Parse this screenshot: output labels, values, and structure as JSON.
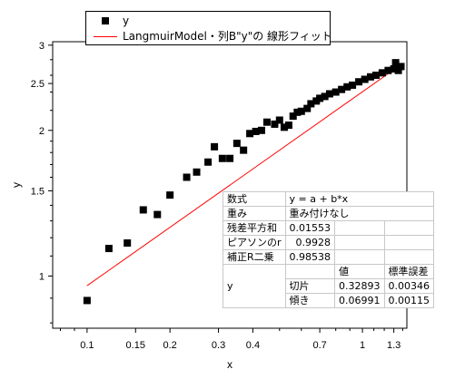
{
  "chart_data": {
    "type": "scatter",
    "xlabel": "x",
    "ylabel": "y",
    "x_scale": "log",
    "y_scale": "log",
    "xlim": [
      0.075,
      1.45
    ],
    "ylim": [
      0.78,
      3.05
    ],
    "xticks": [
      {
        "value": 0.1,
        "label": "0.1"
      },
      {
        "value": 0.15,
        "label": "0.15"
      },
      {
        "value": 0.2,
        "label": "0.2"
      },
      {
        "value": 0.3,
        "label": "0.3"
      },
      {
        "value": 0.4,
        "label": "0.4"
      },
      {
        "value": 0.7,
        "label": "0.7"
      },
      {
        "value": 1.0,
        "label": "1"
      },
      {
        "value": 1.3,
        "label": "1.3"
      }
    ],
    "yticks": [
      {
        "value": 1,
        "label": "1"
      },
      {
        "value": 1.5,
        "label": "1.5"
      },
      {
        "value": 2,
        "label": "2"
      },
      {
        "value": 2.5,
        "label": "2.5"
      },
      {
        "value": 3,
        "label": "3"
      }
    ],
    "series": [
      {
        "name": "y",
        "style": "scatter",
        "color": "#000000",
        "points": [
          [
            0.1,
            0.89
          ],
          [
            0.12,
            1.14
          ],
          [
            0.14,
            1.17
          ],
          [
            0.16,
            1.37
          ],
          [
            0.18,
            1.34
          ],
          [
            0.2,
            1.47
          ],
          [
            0.23,
            1.6
          ],
          [
            0.25,
            1.64
          ],
          [
            0.275,
            1.72
          ],
          [
            0.29,
            1.85
          ],
          [
            0.31,
            1.75
          ],
          [
            0.33,
            1.75
          ],
          [
            0.35,
            1.88
          ],
          [
            0.37,
            1.82
          ],
          [
            0.39,
            1.97
          ],
          [
            0.41,
            1.99
          ],
          [
            0.43,
            2.0
          ],
          [
            0.45,
            2.08
          ],
          [
            0.48,
            2.06
          ],
          [
            0.5,
            2.1
          ],
          [
            0.52,
            2.03
          ],
          [
            0.54,
            2.05
          ],
          [
            0.56,
            2.14
          ],
          [
            0.58,
            2.18
          ],
          [
            0.6,
            2.19
          ],
          [
            0.63,
            2.22
          ],
          [
            0.65,
            2.27
          ],
          [
            0.68,
            2.3
          ],
          [
            0.7,
            2.33
          ],
          [
            0.73,
            2.35
          ],
          [
            0.76,
            2.38
          ],
          [
            0.8,
            2.4
          ],
          [
            0.84,
            2.43
          ],
          [
            0.88,
            2.46
          ],
          [
            0.92,
            2.48
          ],
          [
            0.97,
            2.52
          ],
          [
            1.02,
            2.55
          ],
          [
            1.07,
            2.58
          ],
          [
            1.12,
            2.6
          ],
          [
            1.18,
            2.63
          ],
          [
            1.24,
            2.66
          ],
          [
            1.3,
            2.68
          ],
          [
            1.35,
            2.66
          ],
          [
            1.38,
            2.71
          ],
          [
            1.32,
            2.76
          ]
        ]
      },
      {
        "name": "LangmuirModel・列B\"y\"の 線形フィット",
        "style": "line",
        "color": "#ff0000",
        "x_range": [
          0.1,
          1.4
        ]
      }
    ],
    "legend": {
      "position": "top-left",
      "entries": [
        {
          "label": "y",
          "marker": "square"
        },
        {
          "label": "LangmuirModel・列B\"y\"の 線形フィット",
          "marker": "line"
        }
      ]
    },
    "fit_table": {
      "equation_label": "数式",
      "equation": "y = a + b*x",
      "weight_label": "重み",
      "weight": "重み付けなし",
      "rss_label": "残差平方和",
      "rss": "0.01553",
      "pearson_label": "ピアソンのr",
      "pearson": "0.9928",
      "adj_r2_label": "補正R二乗",
      "adj_r2": "0.98538",
      "value_header": "値",
      "stderr_header": "標準誤差",
      "row_label": "y",
      "intercept_label": "切片",
      "intercept": "0.32893",
      "intercept_err": "0.00346",
      "slope_label": "傾き",
      "slope": "0.06991",
      "slope_err": "0.00115"
    }
  }
}
